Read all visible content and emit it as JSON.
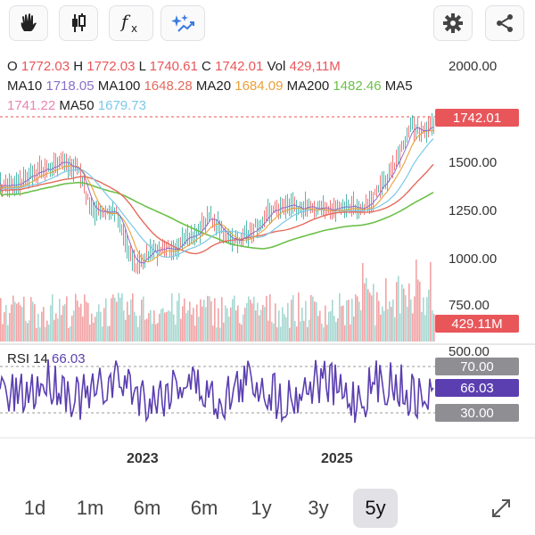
{
  "toolbar": {
    "draw_icon": "hand-draw-icon",
    "candles_icon": "candlestick-icon",
    "function_icon": "function-fx-icon",
    "ai_icon": "sparkle-trend-icon",
    "settings_icon": "gear-icon",
    "share_icon": "share-icon"
  },
  "ohlc": {
    "o_label": "O",
    "o_value": "1772.03",
    "h_label": "H",
    "h_value": "1772.03",
    "l_label": "L",
    "l_value": "1740.61",
    "c_label": "C",
    "c_value": "1742.01",
    "vol_label": "Vol",
    "vol_value": "429,11M"
  },
  "ma": {
    "ma10_label": "MA10",
    "ma10_value": "1718.05",
    "ma100_label": "MA100",
    "ma100_value": "1648.28",
    "ma20_label": "MA20",
    "ma20_value": "1684.09",
    "ma200_label": "MA200",
    "ma200_value": "1482.46",
    "ma5_label": "MA5",
    "ma5_value": "1741.22",
    "ma50_label": "MA50",
    "ma50_value": "1679.73"
  },
  "colors": {
    "red": "#e8565a",
    "ma10": "#8a6fc8",
    "ma100": "#e46b5d",
    "ma20": "#e8a13a",
    "ma200": "#6cc04a",
    "ma5": "#e985b0",
    "ma50": "#7cc8e8",
    "rsi": "#5b3fb0",
    "gray_badge": "#8e8e93"
  },
  "y_axis": [
    "2000.00",
    "1500.00",
    "1250.00",
    "1000.00",
    "750.00",
    "500.00"
  ],
  "price_badge": "1742.01",
  "volume_badge": "429.11M",
  "rsi": {
    "label": "RSI 14",
    "value": "66.03",
    "upper": "70.00",
    "lower": "30.00"
  },
  "x_axis": [
    "2023",
    "2025"
  ],
  "ranges": [
    "1d",
    "1m",
    "6m",
    "1y",
    "3y",
    "5y"
  ],
  "active_range": "5y",
  "expand_icon": "expand-arrows-icon"
}
